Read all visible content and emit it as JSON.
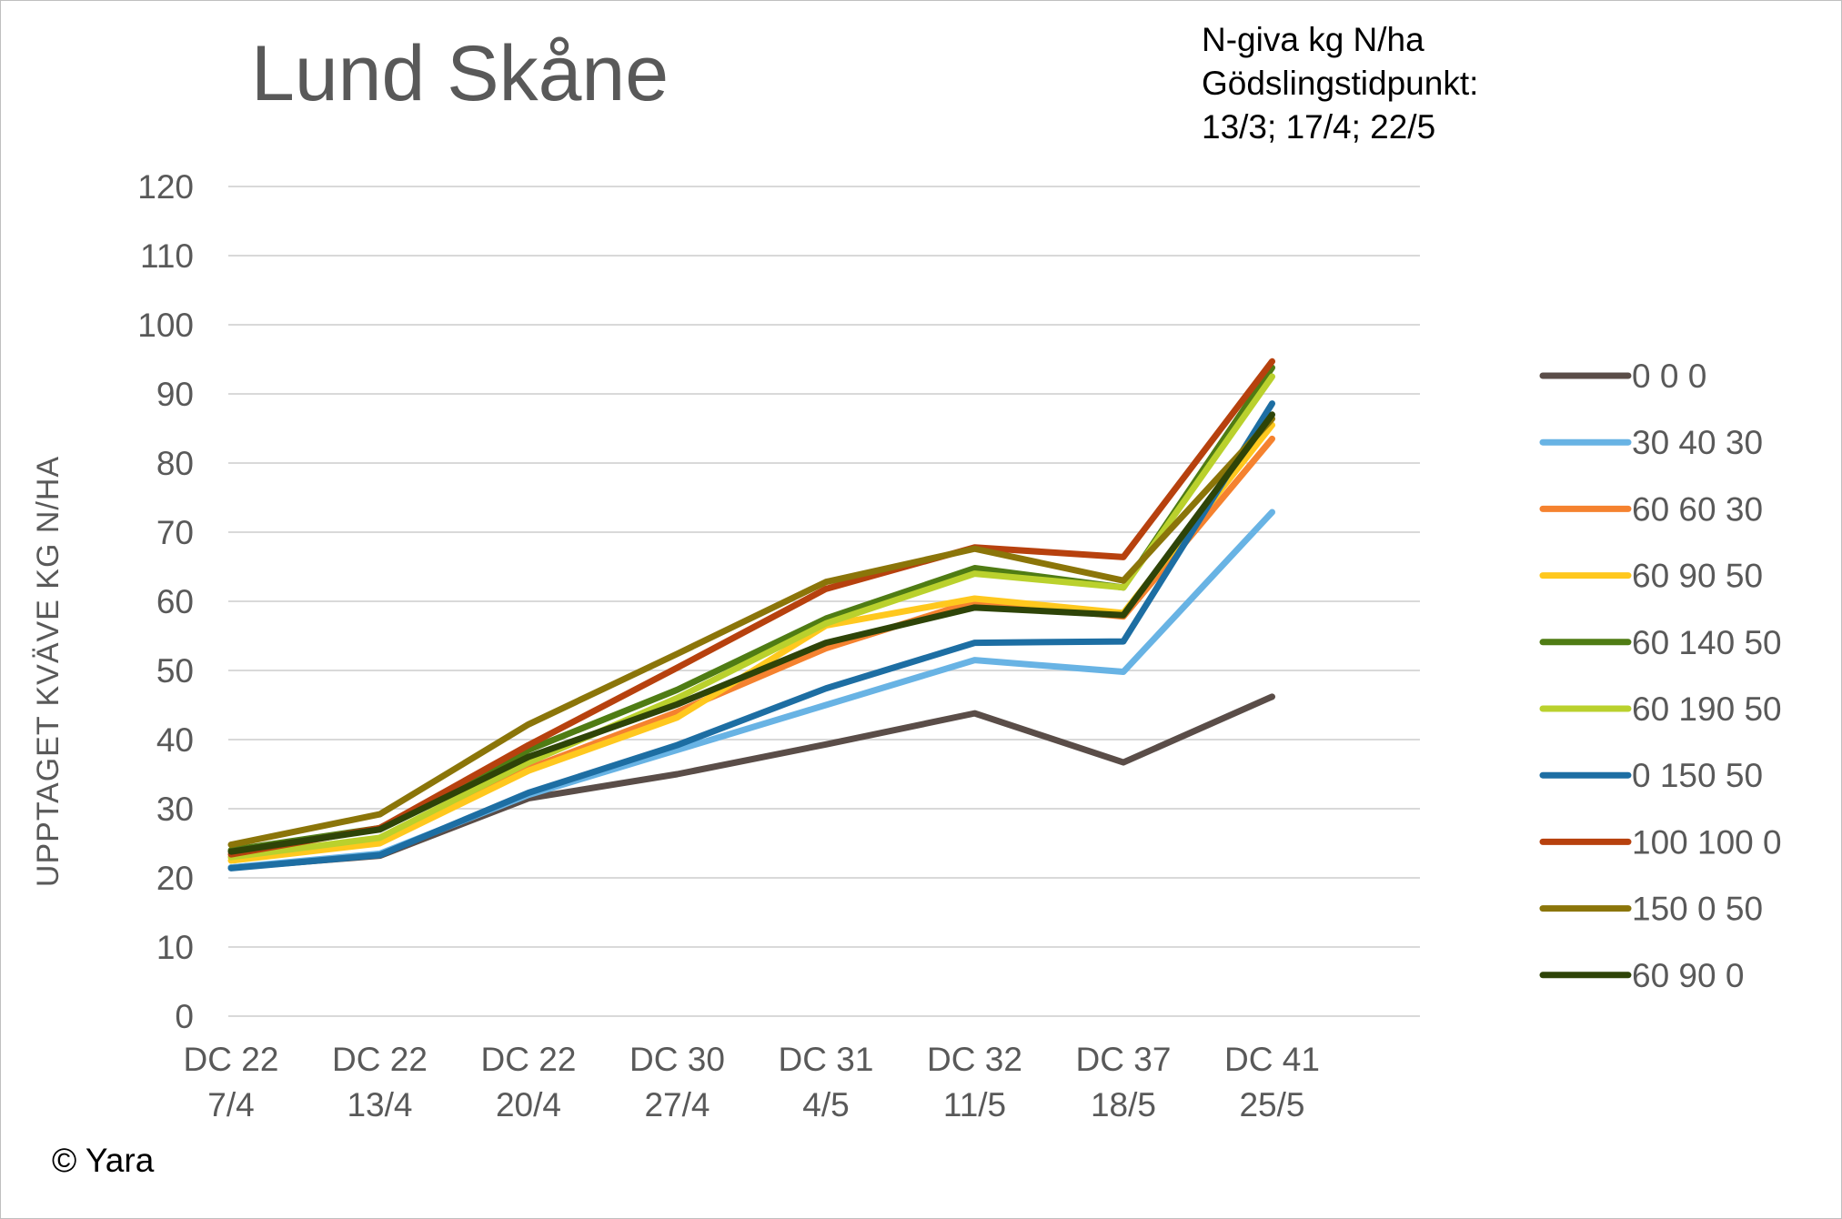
{
  "chart_data": {
    "type": "line",
    "title": "Lund Skåne",
    "annotation": [
      "N-giva kg N/ha",
      "Gödslingstidpunkt:",
      "13/3; 17/4; 22/5"
    ],
    "copyright": "© Yara",
    "ylabel": "UPPTAGET KVÄVE KG N/HA",
    "xlabel": "",
    "ylim": [
      0,
      120
    ],
    "yticks": [
      0,
      10,
      20,
      30,
      40,
      50,
      60,
      70,
      80,
      90,
      100,
      110,
      120
    ],
    "grid": true,
    "legend_position": "right",
    "categories": [
      [
        "DC 22",
        "7/4"
      ],
      [
        "DC 22",
        "13/4"
      ],
      [
        "DC 22",
        "20/4"
      ],
      [
        "DC 30",
        "27/4"
      ],
      [
        "DC 31",
        "4/5"
      ],
      [
        "DC 32",
        "11/5"
      ],
      [
        "DC 37",
        "18/5"
      ],
      [
        "DC 41",
        "25/5"
      ]
    ],
    "series": [
      {
        "name": "0 0 0",
        "color": "#5a4d48",
        "values": [
          21.5,
          23.2,
          31.5,
          35.0,
          39.3,
          43.8,
          36.7,
          46.2
        ]
      },
      {
        "name": "30 40 30",
        "color": "#68b3e4",
        "values": [
          21.5,
          23.5,
          32.0,
          38.5,
          45.0,
          51.5,
          49.8,
          72.9
        ]
      },
      {
        "name": "60 60 30",
        "color": "#f5822f",
        "values": [
          23.0,
          25.5,
          35.8,
          44.0,
          53.2,
          60.0,
          57.8,
          83.5
        ]
      },
      {
        "name": "60 90 50",
        "color": "#ffc81e",
        "values": [
          22.5,
          25.0,
          35.5,
          43.2,
          56.5,
          60.4,
          58.3,
          85.5
        ]
      },
      {
        "name": "60 140 50",
        "color": "#4f7c14",
        "values": [
          24.0,
          27.2,
          38.5,
          47.2,
          57.5,
          64.8,
          62.0,
          93.8
        ]
      },
      {
        "name": "60 190 50",
        "color": "#bad12d",
        "values": [
          23.0,
          25.8,
          36.7,
          46.0,
          56.8,
          64.0,
          62.0,
          92.5
        ]
      },
      {
        "name": "0 150 50",
        "color": "#1d6ea3",
        "values": [
          21.4,
          23.3,
          32.3,
          39.2,
          47.4,
          54.0,
          54.2,
          88.6
        ]
      },
      {
        "name": "100 100 0",
        "color": "#b7410e",
        "values": [
          23.4,
          27.2,
          39.2,
          50.4,
          61.8,
          67.8,
          66.4,
          94.7
        ]
      },
      {
        "name": "150 0 50",
        "color": "#8b7509",
        "values": [
          24.8,
          29.2,
          42.2,
          52.4,
          62.8,
          67.6,
          63.0,
          86.4
        ]
      },
      {
        "name": "60 90 0",
        "color": "#2e4408",
        "values": [
          23.8,
          27.0,
          37.5,
          45.1,
          54.0,
          59.1,
          58.0,
          87.0
        ]
      }
    ]
  }
}
